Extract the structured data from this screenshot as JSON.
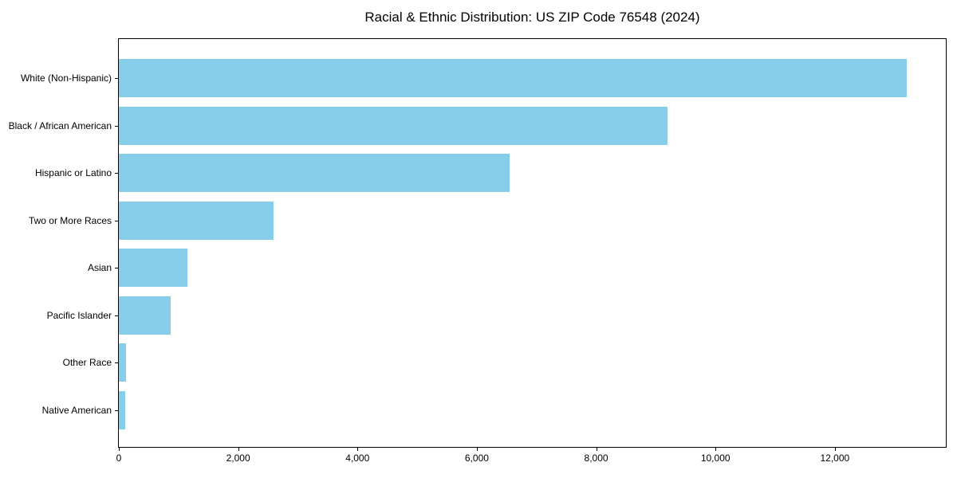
{
  "chart_data": {
    "type": "bar",
    "orientation": "horizontal",
    "title": "Racial & Ethnic Distribution: US ZIP Code 76548 (2024)",
    "categories": [
      "White (Non-Hispanic)",
      "Black / African American",
      "Hispanic or Latino",
      "Two or More Races",
      "Asian",
      "Pacific Islander",
      "Other Race",
      "Native American"
    ],
    "values": [
      13200,
      9200,
      6550,
      2590,
      1150,
      870,
      125,
      110
    ],
    "xlabel": "",
    "ylabel": "",
    "xlim": [
      0,
      13860
    ],
    "x_ticks": [
      0,
      2000,
      4000,
      6000,
      8000,
      10000,
      12000
    ],
    "x_tick_labels": [
      "0",
      "2,000",
      "4,000",
      "6,000",
      "8,000",
      "10,000",
      "12,000"
    ],
    "bar_color": "#87CEEB",
    "background_color": "#ffffff",
    "axis_color": "#000000",
    "grid": false,
    "legend": "none"
  }
}
